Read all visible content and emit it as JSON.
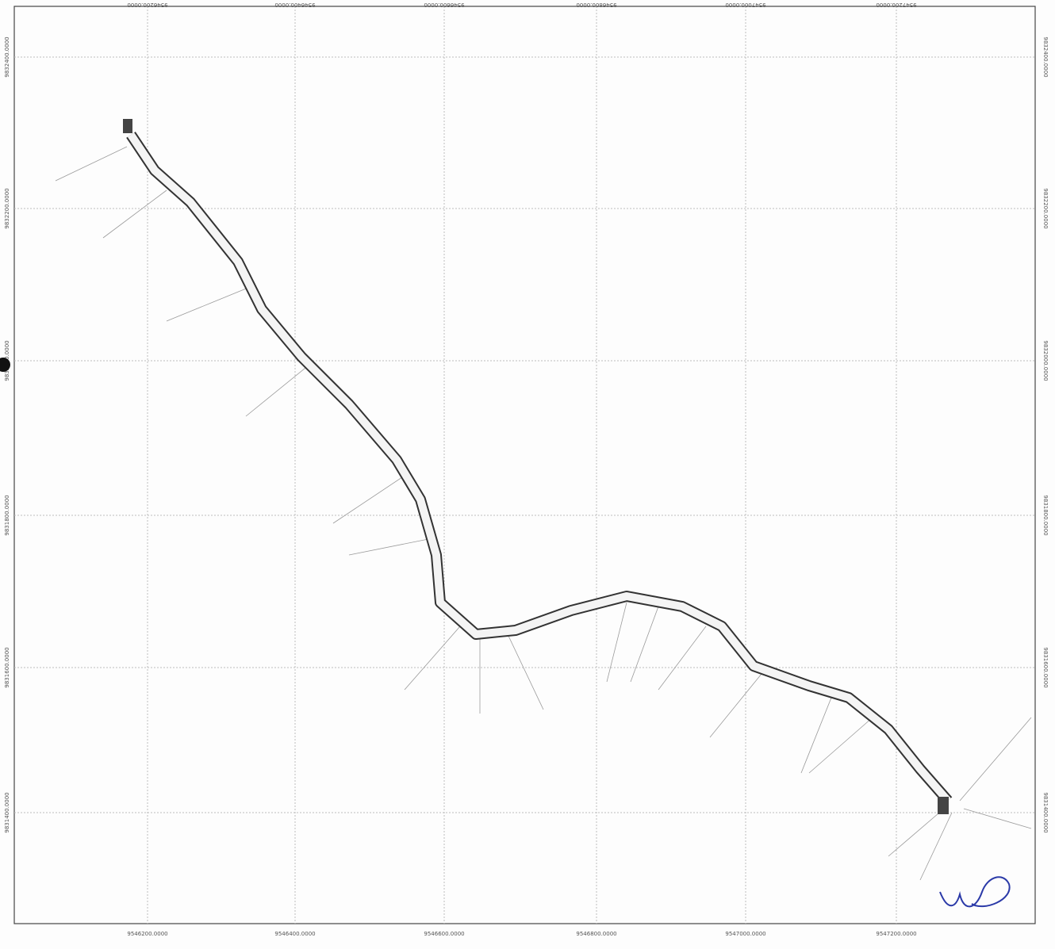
{
  "grid": {
    "x_labels": [
      "9546200.0000",
      "9546400.0000",
      "9546600.0000",
      "9546800.0000",
      "9547000.0000",
      "9547200.0000"
    ],
    "y_labels": [
      "9832400.0000",
      "9832200.0000",
      "9832000.0000",
      "9831800.0000",
      "9831600.0000",
      "9831400.0000"
    ]
  }
}
